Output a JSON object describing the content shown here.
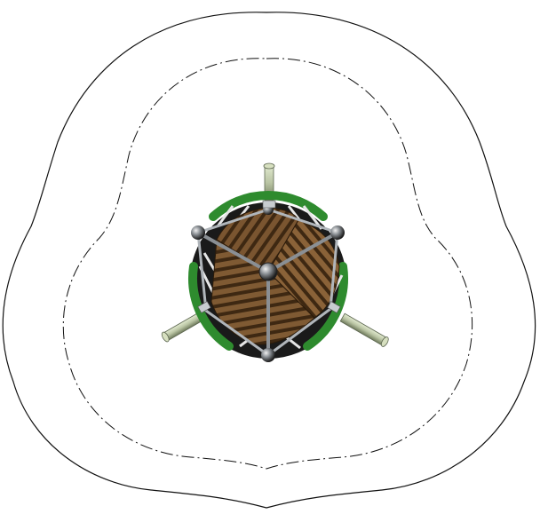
{
  "diagram": {
    "type": "top-view-equipment-clearance-drawing",
    "colors": {
      "background": "#ffffff",
      "outline": "#111111",
      "frame_green": "#2e8b2e",
      "frame_green_dark": "#1f5f1f",
      "panel_brown": "#7a5530",
      "panel_brown_dark": "#4a3018",
      "panel_stripe": "#c79a63",
      "metal": "#9aa0a6",
      "metal_dark": "#4a4e52",
      "leg_tube": "#b9c4a3",
      "leg_tube_dark": "#6f7a5c",
      "hub_black": "#111111"
    },
    "boundaries": [
      {
        "name": "outer-safety-boundary",
        "line_style": "solid"
      },
      {
        "name": "inner-fall-zone-boundary",
        "line_style": "dash-dot"
      }
    ],
    "equipment": {
      "name": "spinner-equipment",
      "legs": 3,
      "segments": 3
    }
  }
}
